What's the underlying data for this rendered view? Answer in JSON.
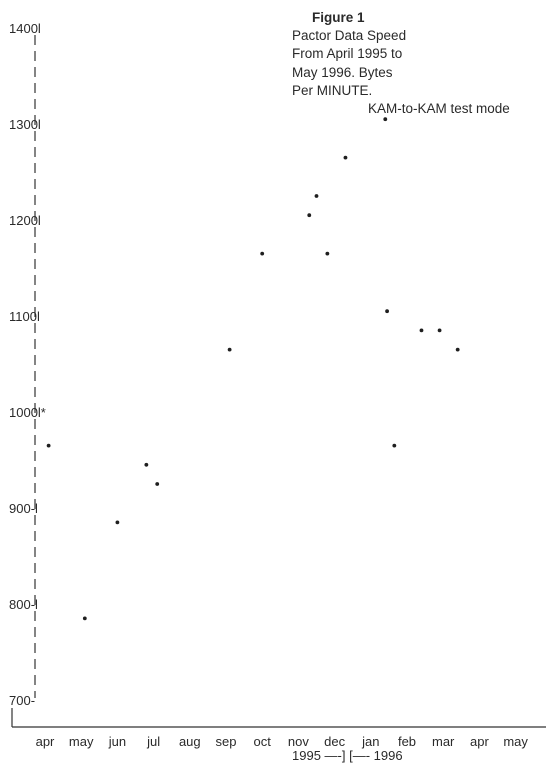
{
  "figure": {
    "label": "Figure 1",
    "caption_lines": [
      "Pactor Data Speed",
      "From April 1995 to",
      "May 1996. Bytes",
      "Per MINUTE."
    ],
    "note": "KAM-to-KAM test mode",
    "year_label": "1995 —-] [—- 1996"
  },
  "chart_data": {
    "type": "scatter",
    "title": "Pactor Data Speed From April 1995 to May 1996. Bytes Per MINUTE.",
    "annotation": "KAM-to-KAM test mode",
    "ylim": [
      700,
      1400
    ],
    "y_ticks": [
      1400,
      1300,
      1200,
      1100,
      1000,
      900,
      800,
      700
    ],
    "y_tick_labels": [
      "1400l",
      "1300l",
      "1200l",
      "1100l",
      "1000l*",
      "900-l",
      "800-l",
      "700-"
    ],
    "x_categories": [
      "apr",
      "may",
      "jun",
      "jul",
      "aug",
      "sep",
      "oct",
      "nov",
      "dec",
      "jan",
      "feb",
      "mar",
      "apr",
      "may"
    ],
    "points": [
      {
        "x": 0.1,
        "y": 965
      },
      {
        "x": 1.1,
        "y": 785
      },
      {
        "x": 2.8,
        "y": 945
      },
      {
        "x": 3.1,
        "y": 925
      },
      {
        "x": 2.0,
        "y": 885
      },
      {
        "x": 5.1,
        "y": 1065
      },
      {
        "x": 6.0,
        "y": 1165
      },
      {
        "x": 7.3,
        "y": 1205
      },
      {
        "x": 7.5,
        "y": 1225
      },
      {
        "x": 7.8,
        "y": 1165
      },
      {
        "x": 8.3,
        "y": 1265
      },
      {
        "x": 9.4,
        "y": 1305
      },
      {
        "x": 9.45,
        "y": 1105
      },
      {
        "x": 9.65,
        "y": 965
      },
      {
        "x": 10.4,
        "y": 1085
      },
      {
        "x": 10.9,
        "y": 1085
      },
      {
        "x": 11.4,
        "y": 1065
      }
    ],
    "axis_style": "dashed-left",
    "legend": "none"
  }
}
